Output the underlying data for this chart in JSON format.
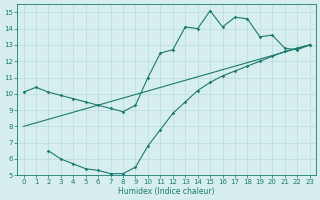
{
  "line1_x": [
    0,
    1,
    2,
    3,
    4,
    5,
    6,
    7,
    8,
    9,
    10,
    11,
    12,
    13,
    14,
    15,
    16,
    17,
    18,
    19,
    20,
    21,
    22,
    23
  ],
  "line1_y": [
    10.1,
    10.4,
    10.1,
    9.9,
    9.7,
    9.5,
    9.3,
    9.1,
    8.9,
    9.3,
    11.0,
    12.5,
    12.7,
    14.1,
    14.0,
    15.1,
    14.1,
    14.7,
    14.6,
    13.5,
    13.6,
    12.8,
    12.7,
    13.0
  ],
  "line2_x": [
    2,
    3,
    4,
    5,
    6,
    7,
    8,
    9,
    10,
    11,
    12,
    13,
    14,
    15,
    16,
    17,
    18,
    19,
    20,
    21,
    22,
    23
  ],
  "line2_y": [
    6.5,
    6.0,
    5.7,
    5.4,
    5.3,
    5.1,
    5.1,
    5.5,
    6.8,
    7.8,
    8.8,
    9.5,
    10.2,
    10.7,
    11.1,
    11.4,
    11.7,
    12.0,
    12.3,
    12.6,
    12.8,
    13.0
  ],
  "line3_x": [
    0,
    23
  ],
  "line3_y": [
    8.0,
    13.0
  ],
  "color": "#1a7a6e",
  "bg_color": "#d6eeee",
  "grid_color": "#b8dada",
  "xlabel": "Humidex (Indice chaleur)",
  "ylim": [
    5,
    15.5
  ],
  "xlim": [
    -0.5,
    23.5
  ],
  "yticks": [
    5,
    6,
    7,
    8,
    9,
    10,
    11,
    12,
    13,
    14,
    15
  ],
  "xticks": [
    0,
    1,
    2,
    3,
    4,
    5,
    6,
    7,
    8,
    9,
    10,
    11,
    12,
    13,
    14,
    15,
    16,
    17,
    18,
    19,
    20,
    21,
    22,
    23
  ]
}
